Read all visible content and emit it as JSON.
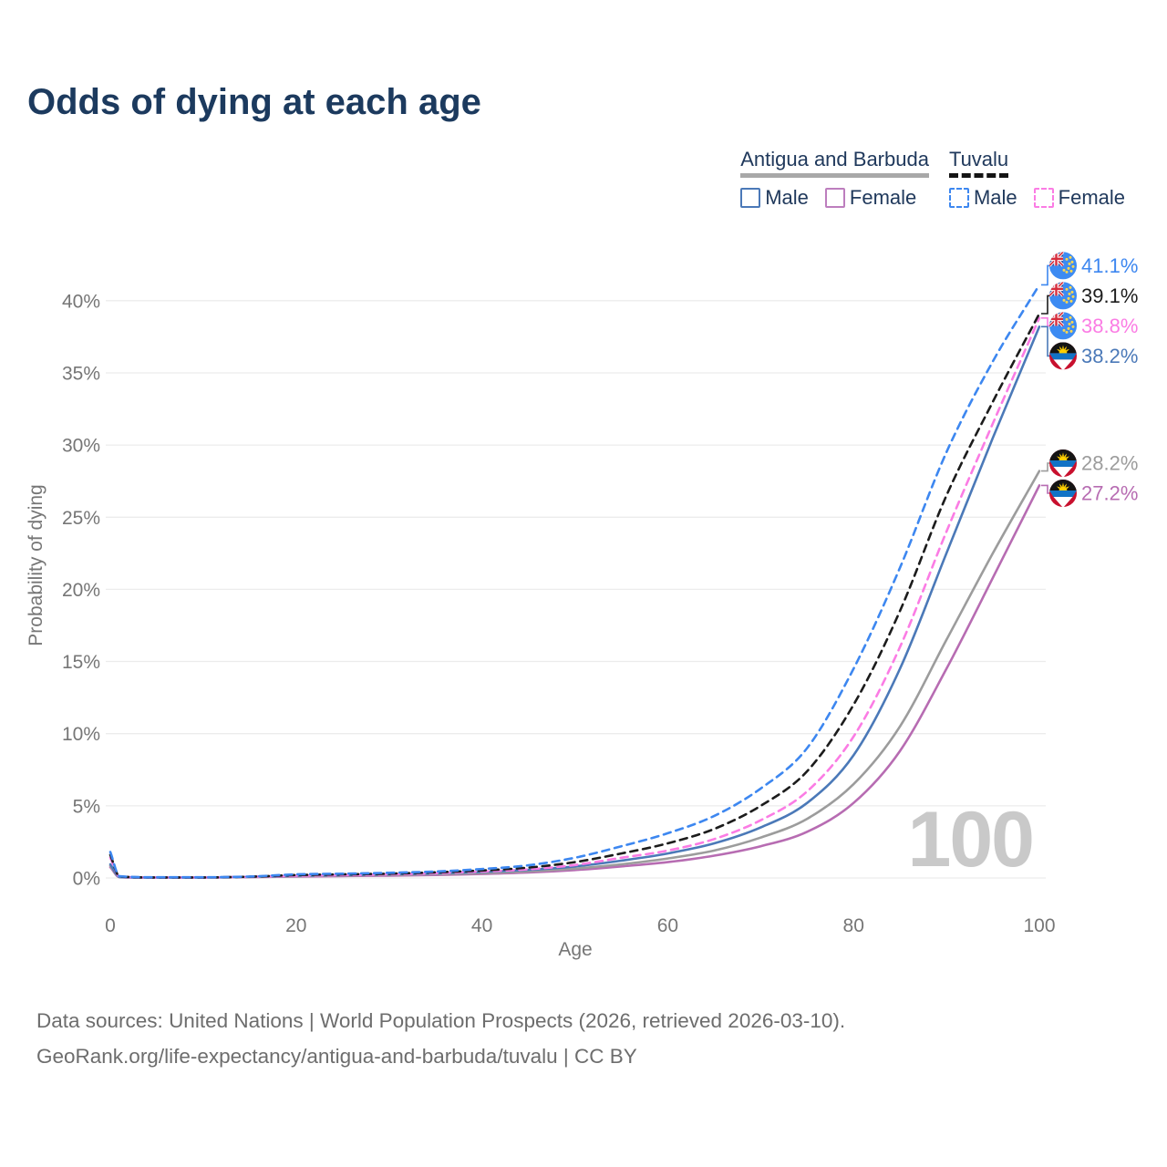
{
  "title": "Odds of dying at each age",
  "theme": {
    "title_color": "#1c3a5e",
    "legend_text_color": "#20395c",
    "axis_text_color": "#767676",
    "gridline_color": "#ececec",
    "watermark_color": "#c9c9c9",
    "footer_color": "#6d6d6d"
  },
  "legend": {
    "groups": [
      {
        "label": "Antigua and Barbuda",
        "underline_style": "solid",
        "underline_color": "#a8a8a8",
        "items": [
          {
            "label": "Male",
            "color": "#4b79b8",
            "dash": false
          },
          {
            "label": "Female",
            "color": "#bd7ebe",
            "dash": false
          }
        ]
      },
      {
        "label": "Tuvalu",
        "underline_style": "dashed",
        "underline_color": "#141414",
        "items": [
          {
            "label": "Male",
            "color": "#3d87f0",
            "dash": true
          },
          {
            "label": "Female",
            "color": "#fb7ce4",
            "dash": true
          }
        ]
      }
    ]
  },
  "chart_data": {
    "type": "line",
    "title": "Odds of dying at each age",
    "xlabel": "Age",
    "ylabel": "Probability of dying",
    "x_ticks": [
      0,
      20,
      40,
      60,
      80,
      100
    ],
    "y_ticks": [
      0,
      5,
      10,
      15,
      20,
      25,
      30,
      35,
      40
    ],
    "y_tick_suffix": "%",
    "xlim": [
      0,
      100
    ],
    "ylim": [
      0,
      43
    ],
    "grid": "horizontal",
    "legend_position": "top-right",
    "watermark": "100",
    "ages": [
      0,
      1,
      5,
      10,
      15,
      20,
      25,
      30,
      35,
      40,
      45,
      50,
      55,
      60,
      65,
      70,
      75,
      80,
      85,
      90,
      95,
      100
    ],
    "series": [
      {
        "name": "Tuvalu Male",
        "country": "Tuvalu",
        "sex": "Male",
        "color": "#3d87f0",
        "dash": true,
        "flag": "tuvalu",
        "end_label": "41.1%",
        "values": [
          1.8,
          0.12,
          0.05,
          0.05,
          0.1,
          0.25,
          0.3,
          0.36,
          0.45,
          0.62,
          0.88,
          1.4,
          2.2,
          3.1,
          4.3,
          6.2,
          9.0,
          14.5,
          21.5,
          29.5,
          35.8,
          41.1
        ]
      },
      {
        "name": "Tuvalu Both sexes",
        "country": "Tuvalu",
        "sex": "Both",
        "color": "#1c1c1c",
        "dash": true,
        "flag": "tuvalu",
        "end_label": "39.1%",
        "values": [
          1.6,
          0.1,
          0.04,
          0.04,
          0.09,
          0.2,
          0.25,
          0.3,
          0.39,
          0.52,
          0.72,
          1.1,
          1.7,
          2.4,
          3.4,
          5.0,
          7.4,
          12.0,
          18.5,
          26.5,
          33.0,
          39.1
        ]
      },
      {
        "name": "Tuvalu Female",
        "country": "Tuvalu",
        "sex": "Female",
        "color": "#fb7ce4",
        "dash": true,
        "flag": "tuvalu",
        "end_label": "38.8%",
        "values": [
          1.4,
          0.09,
          0.04,
          0.04,
          0.08,
          0.16,
          0.2,
          0.25,
          0.33,
          0.45,
          0.6,
          0.9,
          1.4,
          1.9,
          2.7,
          4.0,
          6.0,
          9.8,
          16.0,
          24.0,
          31.5,
          38.8
        ]
      },
      {
        "name": "Antigua and Barbuda Male",
        "country": "Antigua and Barbuda",
        "sex": "Male",
        "color": "#4b79b8",
        "dash": false,
        "flag": "antigua-and-barbuda",
        "end_label": "38.2%",
        "values": [
          0.95,
          0.07,
          0.03,
          0.04,
          0.08,
          0.16,
          0.2,
          0.25,
          0.32,
          0.42,
          0.56,
          0.8,
          1.2,
          1.7,
          2.4,
          3.5,
          5.2,
          8.5,
          14.5,
          22.5,
          30.5,
          38.2
        ]
      },
      {
        "name": "Antigua and Barbuda Both sexes",
        "country": "Antigua and Barbuda",
        "sex": "Both",
        "color": "#9c9c9c",
        "dash": false,
        "flag": "antigua-and-barbuda",
        "end_label": "28.2%",
        "values": [
          0.85,
          0.06,
          0.03,
          0.03,
          0.07,
          0.13,
          0.17,
          0.21,
          0.27,
          0.34,
          0.46,
          0.65,
          0.95,
          1.35,
          1.9,
          2.8,
          4.1,
          6.5,
          10.5,
          16.5,
          22.5,
          28.2
        ]
      },
      {
        "name": "Antigua and Barbuda Female",
        "country": "Antigua and Barbuda",
        "sex": "Female",
        "color": "#b76cb2",
        "dash": false,
        "flag": "antigua-and-barbuda",
        "end_label": "27.2%",
        "values": [
          0.75,
          0.05,
          0.02,
          0.03,
          0.06,
          0.1,
          0.13,
          0.16,
          0.21,
          0.28,
          0.38,
          0.55,
          0.8,
          1.1,
          1.55,
          2.2,
          3.2,
          5.2,
          8.8,
          14.5,
          20.8,
          27.2
        ]
      }
    ]
  },
  "footer": {
    "line1": "Data sources: United Nations | World Population Prospects (2026, retrieved 2026-03-10).",
    "line2": "GeoRank.org/life-expectancy/antigua-and-barbuda/tuvalu | CC BY"
  }
}
